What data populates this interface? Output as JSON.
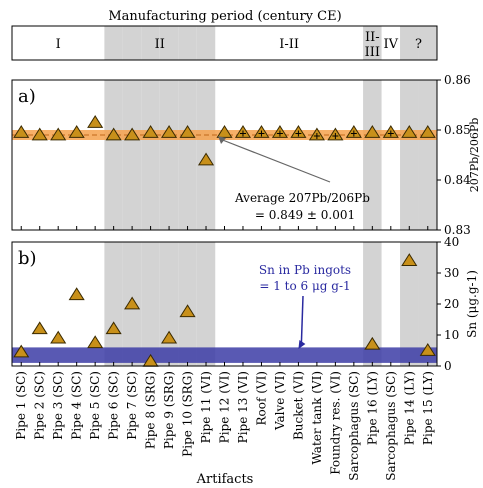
{
  "period_header": {
    "title": "Manufacturing period (century CE)",
    "labels": [
      {
        "text": "I",
        "from": 0,
        "to": 4
      },
      {
        "text": "II",
        "from": 5,
        "to": 10
      },
      {
        "text": "I-II",
        "from": 11,
        "to": 18
      },
      {
        "text": "II-III",
        "from": 19,
        "to": 19
      },
      {
        "text": "IV",
        "from": 20,
        "to": 20
      },
      {
        "text": "?",
        "from": 21,
        "to": 22
      }
    ]
  },
  "chart_data": [
    {
      "panel_label": "a)",
      "type": "scatter",
      "ylabel": "207Pb/206Pb",
      "ylim": [
        0.83,
        0.86
      ],
      "yticks": [
        "0.83",
        "0.84",
        "0.85",
        "0.86"
      ],
      "reference_band": {
        "center": 0.849,
        "low": 0.848,
        "high": 0.85,
        "color": "#f6a24e"
      },
      "annotation": {
        "line1": "Average",
        "ratio_label": "207Pb/206Pb",
        "line2": "= 0.849 ± 0.001",
        "points_to_index": 10
      },
      "values": [
        0.8495,
        0.849,
        0.849,
        0.8495,
        0.8515,
        0.849,
        0.849,
        0.8495,
        0.8495,
        0.8495,
        0.844,
        0.8495,
        0.8495,
        0.8495,
        0.8495,
        0.8495,
        0.849,
        0.849,
        0.8495,
        0.8495,
        0.8495,
        0.8495,
        0.8495
      ],
      "error_cross_indices": [
        12,
        13,
        14,
        15,
        16,
        17,
        18,
        20
      ]
    },
    {
      "panel_label": "b)",
      "type": "scatter",
      "ylabel": "Sn (μg.g-1)",
      "ylim": [
        0,
        40
      ],
      "yticks": [
        "0",
        "10",
        "20",
        "30",
        "40"
      ],
      "reference_band": {
        "low": 1,
        "high": 6,
        "color": "#3c3ca6"
      },
      "annotation": {
        "line1": "Sn in Pb ingots",
        "line2": "= 1 to 6 μg g-1",
        "points_to_index": 15
      },
      "values": [
        4.5,
        12,
        9,
        23,
        7.5,
        12,
        20,
        1.5,
        9,
        17.5,
        null,
        null,
        null,
        null,
        null,
        null,
        null,
        null,
        null,
        7,
        null,
        34,
        5
      ]
    }
  ],
  "categories": [
    "Pipe 1 (SC)",
    "Pipe 2 (SC)",
    "Pipe 3 (SC)",
    "Pipe 4 (SC)",
    "Pipe 5 (SC)",
    "Pipe 6 (SC)",
    "Pipe 7 (SC)",
    "Pipe 8 (SRG)",
    "Pipe 9 (SRG)",
    "Pipe 10 (SRG)",
    "Pipe 11 (VI)",
    "Pipe 12 (VI)",
    "Pipe 13 (VI)",
    "Roof (VI)",
    "Valve (VI)",
    "Bucket (VI)",
    "Water tank (VI)",
    "Foundry res. (VI)",
    "Sarcophagus (SC)",
    "Pipe 16 (LY)",
    "Sarcophagus (SC)",
    "Pipe 14 (LY)",
    "Pipe 15 (LY)"
  ],
  "xlabel": "Artifacts",
  "shaded_columns": [
    5,
    6,
    7,
    8,
    9,
    10,
    19,
    21,
    22
  ],
  "colors": {
    "shade": "#d3d3d3",
    "marker_fill": "#c8901a",
    "marker_stroke": "#3a2a00"
  }
}
